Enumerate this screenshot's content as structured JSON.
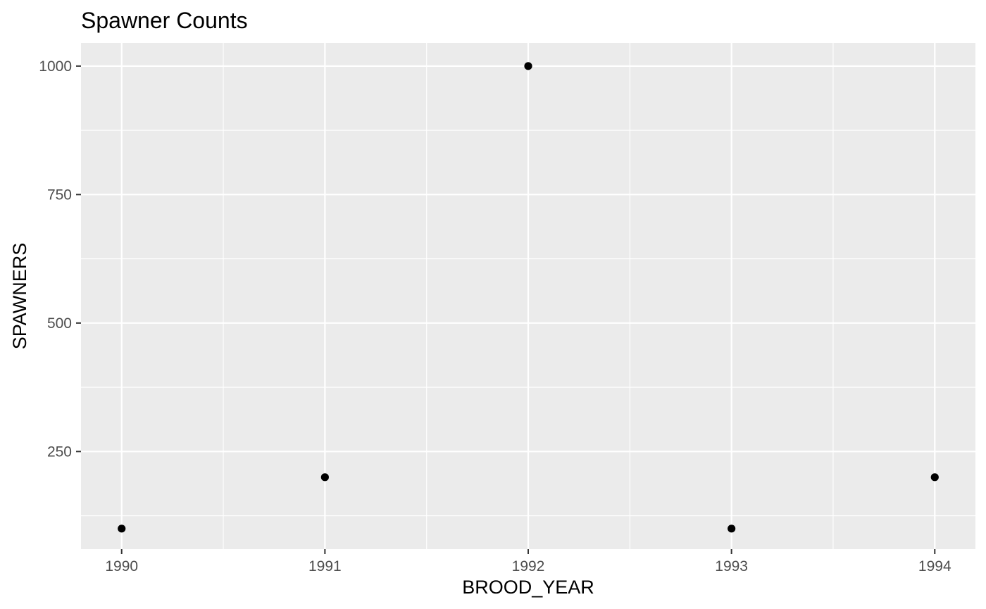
{
  "chart_data": {
    "type": "scatter",
    "title": "Spawner Counts",
    "xlabel": "BROOD_YEAR",
    "ylabel": "SPAWNERS",
    "x": [
      1990,
      1991,
      1992,
      1993,
      1994
    ],
    "y": [
      100,
      200,
      1000,
      100,
      200
    ],
    "x_ticks": [
      1990,
      1991,
      1992,
      1993,
      1994
    ],
    "y_ticks": [
      250,
      500,
      750,
      1000
    ],
    "xlim": [
      1989.8,
      1994.2
    ],
    "ylim": [
      60,
      1045
    ],
    "grid": true,
    "legend": "none",
    "colors": {
      "panel_background": "#ebebeb",
      "grid_major": "#ffffff",
      "point": "#000000",
      "tick_text": "#4d4d4d"
    }
  }
}
